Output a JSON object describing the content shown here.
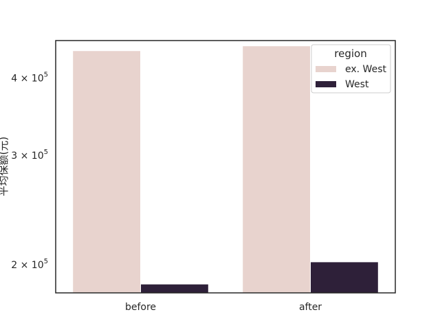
{
  "chart_data": {
    "type": "bar",
    "title": "",
    "xlabel": "",
    "ylabel": "平均保额(元)",
    "yscale": "log",
    "ylim": [
      180000,
      460000
    ],
    "categories": [
      "before",
      "after"
    ],
    "yticks": [
      {
        "value": 200000,
        "base": "2 × 10",
        "exp": "5"
      },
      {
        "value": 300000,
        "base": "3 × 10",
        "exp": "5"
      },
      {
        "value": 400000,
        "base": "4 × 10",
        "exp": "5"
      }
    ],
    "series": [
      {
        "name": "ex. West",
        "color": "#e8d3ce",
        "values": [
          443000,
          451000
        ]
      },
      {
        "name": "West",
        "color": "#2e2039",
        "values": [
          186000,
          202000
        ]
      }
    ],
    "legend": {
      "title": "region",
      "placement": "top-right"
    },
    "grid": false
  }
}
